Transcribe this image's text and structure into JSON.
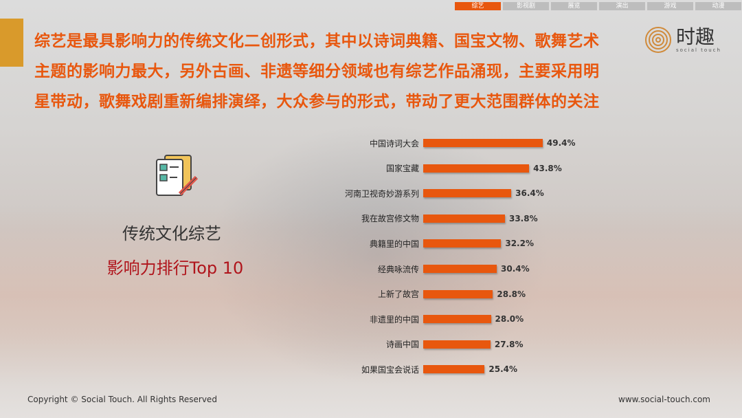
{
  "nav": {
    "tabs": [
      "综艺",
      "影视剧",
      "展览",
      "演出",
      "游戏",
      "动漫"
    ],
    "active": 0
  },
  "headline": [
    "综艺是最具影响力的传统文化二创形式，其中以诗词典籍、国宝文物、歌舞艺术",
    "主题的影响力最大，另外古画、非遗等细分领域也有综艺作品涌现，主要采用明",
    "星带动，歌舞戏剧重新编排演绎，大众参与的形式，带动了更大范围群体的关注"
  ],
  "logo": {
    "name": "时趣",
    "sub": "social touch"
  },
  "left": {
    "title1": "传统文化综艺",
    "title2": "影响力排行Top 10"
  },
  "colors": {
    "accent": "#e8570e",
    "bar": "#e8570e",
    "title2": "#b0151c",
    "block": "#d99a2b"
  },
  "chart_data": {
    "type": "bar",
    "orientation": "horizontal",
    "categories": [
      "中国诗词大会",
      "国家宝藏",
      "河南卫视奇妙游系列",
      "我在故宫修文物",
      "典籍里的中国",
      "经典咏流传",
      "上新了故宫",
      "非遗里的中国",
      "诗画中国",
      "如果国宝会说话"
    ],
    "values": [
      49.4,
      43.8,
      36.4,
      33.8,
      32.2,
      30.4,
      28.8,
      28.0,
      27.8,
      25.4
    ],
    "labels": [
      "49.4%",
      "43.8%",
      "36.4%",
      "33.8%",
      "32.2%",
      "30.4%",
      "28.8%",
      "28.0%",
      "27.8%",
      "25.4%"
    ],
    "unit": "%",
    "grid": false
  },
  "footer": {
    "copyright": "Copyright © Social Touch. All Rights Reserved",
    "url": "www.social-touch.com"
  }
}
